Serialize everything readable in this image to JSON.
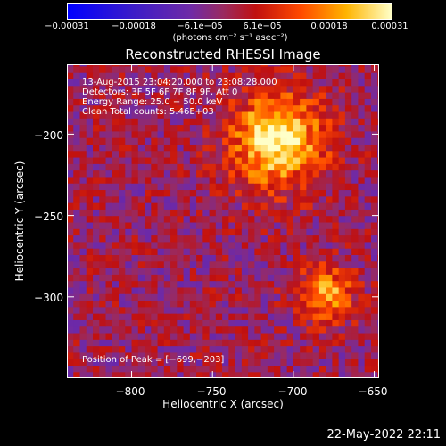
{
  "chart_data": {
    "type": "heatmap",
    "title": "Reconstructed RHESSI Image",
    "xlabel": "Heliocentric X (arcsec)",
    "ylabel": "Heliocentric Y (arcsec)",
    "xlim": [
      -840,
      -647
    ],
    "ylim": [
      -350,
      -157
    ],
    "x_ticks": [
      "−800",
      "−750",
      "−700",
      "−650"
    ],
    "x_tick_values": [
      -800,
      -750,
      -700,
      -650
    ],
    "y_ticks": [
      "−200",
      "−250",
      "−300"
    ],
    "y_tick_values": [
      -200,
      -250,
      -300
    ],
    "colorbar": {
      "ticks": [
        "−0.00031",
        "−0.00018",
        "−6.1e−05",
        "6.1e−05",
        "0.00018",
        "0.00031"
      ],
      "tick_values": [
        -0.00031,
        -0.00018,
        -6.1e-05,
        6.1e-05,
        0.00018,
        0.00031
      ],
      "unit": "(photons cm⁻² s⁻¹ asec⁻²)"
    },
    "annotations": [
      "13‐Aug‐2015 23:04:20.000 to 23:08:28.000",
      "Detectors: 3F 5F 6F 7F 8F 9F, Att 0",
      "Energy Range: 25.0 − 50.0 keV",
      "Clean     Total counts: 5.46E+03"
    ],
    "peak": {
      "label": "Position of Peak = [−699,−203]",
      "x": -699,
      "y": -203
    },
    "sources": [
      {
        "x": -712,
        "y": -205,
        "sigma": 20,
        "amplitude": 0.00031
      },
      {
        "x": -682,
        "y": -300,
        "sigma": 12,
        "amplitude": 0.00022
      }
    ]
  },
  "footer": {
    "timestamp": "22‐May‐2022 22:11"
  },
  "colors": {
    "background": "#000000",
    "foreground": "#ffffff"
  }
}
